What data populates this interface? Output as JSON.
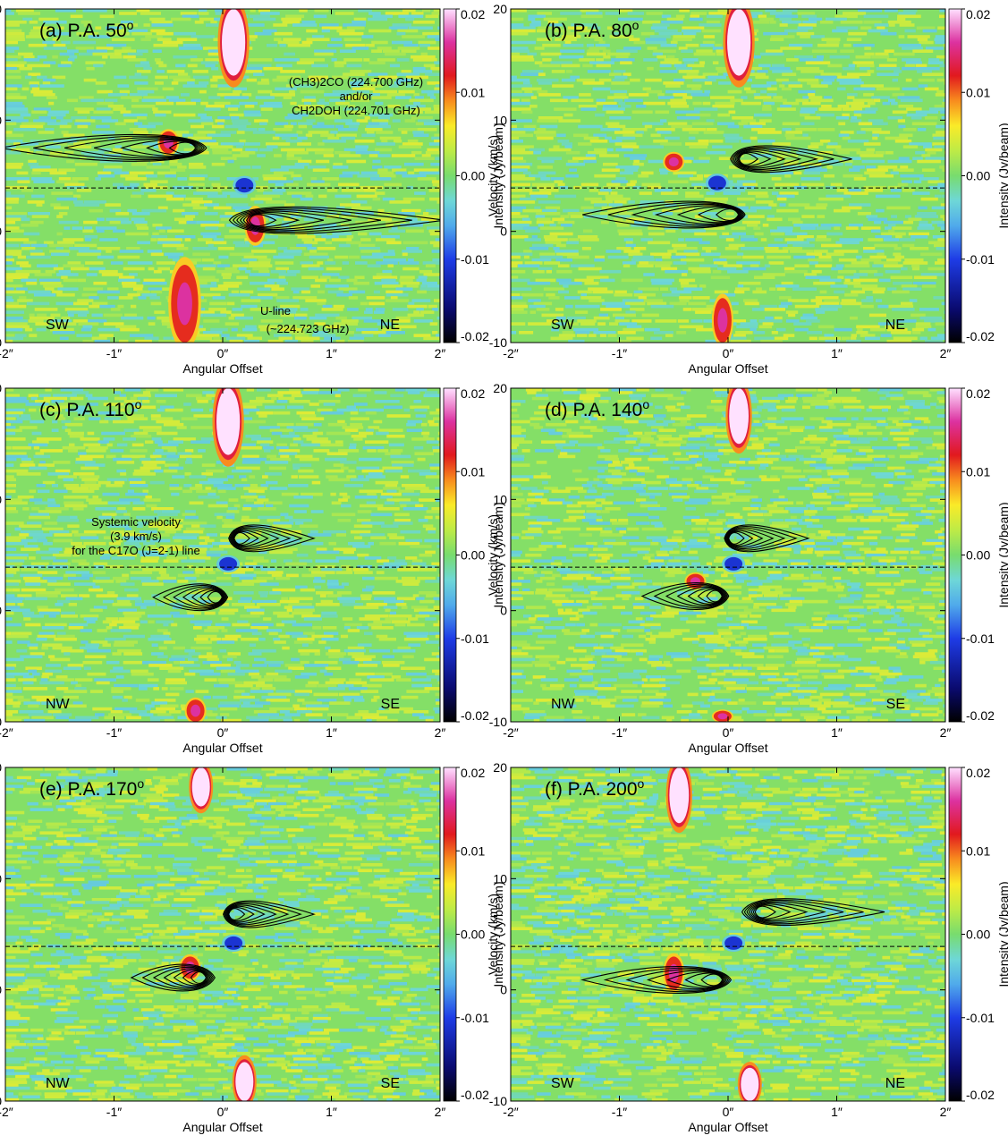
{
  "figure": {
    "x_tick_labels": [
      "-2″",
      "-1″",
      "0″",
      "1″",
      "2″"
    ],
    "y_tick_labels": [
      "-10",
      "0",
      "10",
      "20"
    ],
    "cbar_tick_labels": [
      "-0.02",
      "-0.01",
      "0.00",
      "0.01",
      "0.02"
    ],
    "xlabel": "Angular Offset",
    "ylabel": "Velocity (km/s)",
    "cbar_label": "Intensity (Jy/beam)",
    "annotations": {
      "molecule_line1": "(CH3)2CO (224.700 GHz)",
      "molecule_line2": "and/or",
      "molecule_line3": "CH2DOH (224.701 GHz)",
      "uline_line1": "U-line",
      "uline_line2": "(~224.723 GHz)",
      "systemic_line1": "Systemic velocity",
      "systemic_line2": "(3.9 km/s)",
      "systemic_line3": "for the C17O (J=2-1) line"
    }
  },
  "chart_data": [
    {
      "type": "heatmap",
      "title": "(a) P.A. 50o",
      "xlabel": "Angular Offset",
      "ylabel": "Velocity (km/s)",
      "xlim": [
        -2,
        2
      ],
      "ylim": [
        -10,
        20
      ],
      "colorbar": {
        "label": "Intensity (Jy/beam)",
        "range": [
          -0.02,
          0.02
        ]
      },
      "direction_left": "SW",
      "direction_right": "NE",
      "systemic_velocity": 3.9,
      "emission_features": [
        {
          "offset": 0.1,
          "velocity_range": [
            14,
            20
          ],
          "intensity": ">0.02"
        },
        {
          "offset": -0.35,
          "velocity_range": [
            -10,
            -3
          ],
          "intensity": 0.01
        },
        {
          "offset": 0.3,
          "velocity_range": [
            -1,
            2
          ],
          "intensity": 0.015
        },
        {
          "offset": -0.5,
          "velocity_range": [
            7,
            9
          ],
          "intensity": 0.01
        }
      ],
      "absorption_features": [
        {
          "offset": 0.2,
          "velocity_range": [
            3.5,
            4.8
          ],
          "intensity": -0.01
        }
      ],
      "contour_lobes": [
        {
          "center": [
            -0.3,
            7.5
          ],
          "extent_offset": [
            -2,
            0.2
          ]
        },
        {
          "center": [
            0.3,
            1.0
          ],
          "extent_offset": [
            -0.6,
            2
          ]
        }
      ]
    },
    {
      "type": "heatmap",
      "title": "(b) P.A. 80o",
      "xlabel": "Angular Offset",
      "ylabel": "Velocity (km/s)",
      "xlim": [
        -2,
        2
      ],
      "ylim": [
        -10,
        20
      ],
      "colorbar": {
        "label": "Intensity (Jy/beam)",
        "range": [
          -0.02,
          0.02
        ]
      },
      "direction_left": "SW",
      "direction_right": "NE",
      "systemic_velocity": 3.9,
      "emission_features": [
        {
          "offset": 0.1,
          "velocity_range": [
            14,
            20
          ],
          "intensity": ">0.02"
        },
        {
          "offset": -0.05,
          "velocity_range": [
            -10,
            -6
          ],
          "intensity": 0.01
        },
        {
          "offset": -0.5,
          "velocity_range": [
            5.5,
            7
          ],
          "intensity": 0.01
        }
      ],
      "absorption_features": [
        {
          "offset": -0.1,
          "velocity_range": [
            3.7,
            5
          ],
          "intensity": -0.01
        }
      ],
      "contour_lobes": [
        {
          "center": [
            0.15,
            6.5
          ],
          "extent_offset": [
            -0.25,
            1.1
          ]
        },
        {
          "center": [
            0.05,
            1.5
          ],
          "extent_offset": [
            -1.3,
            0.35
          ]
        }
      ]
    },
    {
      "type": "heatmap",
      "title": "(c) P.A. 110o",
      "xlabel": "Angular Offset",
      "ylabel": "Velocity (km/s)",
      "xlim": [
        -2,
        2
      ],
      "ylim": [
        -10,
        20
      ],
      "colorbar": {
        "label": "Intensity (Jy/beam)",
        "range": [
          -0.02,
          0.02
        ]
      },
      "direction_left": "NW",
      "direction_right": "SE",
      "systemic_velocity": 3.9,
      "emission_features": [
        {
          "offset": 0.05,
          "velocity_range": [
            14,
            20
          ],
          "intensity": ">0.02"
        },
        {
          "offset": -0.25,
          "velocity_range": [
            -10,
            -8
          ],
          "intensity": 0.01
        }
      ],
      "absorption_features": [
        {
          "offset": 0.05,
          "velocity_range": [
            3.6,
            4.8
          ],
          "intensity": -0.01
        }
      ],
      "contour_lobes": [
        {
          "center": [
            0.15,
            6.5
          ],
          "extent_offset": [
            -0.1,
            0.8
          ]
        },
        {
          "center": [
            -0.05,
            1.2
          ],
          "extent_offset": [
            -0.6,
            0.2
          ]
        }
      ]
    },
    {
      "type": "heatmap",
      "title": "(d) P.A. 140o",
      "xlabel": "Angular Offset",
      "ylabel": "Velocity (km/s)",
      "xlim": [
        -2,
        2
      ],
      "ylim": [
        -10,
        20
      ],
      "colorbar": {
        "label": "Intensity (Jy/beam)",
        "range": [
          -0.02,
          0.02
        ]
      },
      "direction_left": "NW",
      "direction_right": "SE",
      "systemic_velocity": 3.9,
      "emission_features": [
        {
          "offset": 0.1,
          "velocity_range": [
            15,
            20
          ],
          "intensity": ">0.02"
        },
        {
          "offset": -0.05,
          "velocity_range": [
            -10,
            -9
          ],
          "intensity": 0.01
        },
        {
          "offset": -0.3,
          "velocity_range": [
            2,
            3.3
          ],
          "intensity": 0.01
        }
      ],
      "absorption_features": [
        {
          "offset": 0.05,
          "velocity_range": [
            3.6,
            4.8
          ],
          "intensity": -0.01
        }
      ],
      "contour_lobes": [
        {
          "center": [
            0.05,
            6.5
          ],
          "extent_offset": [
            -0.15,
            0.7
          ]
        },
        {
          "center": [
            -0.1,
            1.3
          ],
          "extent_offset": [
            -0.75,
            0.2
          ]
        }
      ]
    },
    {
      "type": "heatmap",
      "title": "(e) P.A. 170o",
      "xlabel": "Angular Offset",
      "ylabel": "Velocity (km/s)",
      "xlim": [
        -2,
        2
      ],
      "ylim": [
        -10,
        20
      ],
      "colorbar": {
        "label": "Intensity (Jy/beam)",
        "range": [
          -0.02,
          0.02
        ]
      },
      "direction_left": "NW",
      "direction_right": "SE",
      "systemic_velocity": 3.9,
      "emission_features": [
        {
          "offset": -0.2,
          "velocity_range": [
            16.5,
            20
          ],
          "intensity": ">0.02"
        },
        {
          "offset": 0.2,
          "velocity_range": [
            -10,
            -6.5
          ],
          "intensity": ">0.02"
        },
        {
          "offset": -0.3,
          "velocity_range": [
            1,
            3
          ],
          "intensity": 0.01
        }
      ],
      "absorption_features": [
        {
          "offset": 0.1,
          "velocity_range": [
            3.6,
            4.8
          ],
          "intensity": -0.01
        }
      ],
      "contour_lobes": [
        {
          "center": [
            0.1,
            6.8
          ],
          "extent_offset": [
            -0.15,
            0.8
          ]
        },
        {
          "center": [
            -0.2,
            1.1
          ],
          "extent_offset": [
            -0.8,
            0.2
          ]
        }
      ]
    },
    {
      "type": "heatmap",
      "title": "(f) P.A. 200o",
      "xlabel": "Angular Offset",
      "ylabel": "Velocity (km/s)",
      "xlim": [
        -2,
        2
      ],
      "ylim": [
        -10,
        20
      ],
      "colorbar": {
        "label": "Intensity (Jy/beam)",
        "range": [
          -0.02,
          0.02
        ]
      },
      "direction_left": "SW",
      "direction_right": "NE",
      "systemic_velocity": 3.9,
      "emission_features": [
        {
          "offset": -0.45,
          "velocity_range": [
            15,
            20
          ],
          "intensity": ">0.02"
        },
        {
          "offset": 0.2,
          "velocity_range": [
            -10,
            -7
          ],
          "intensity": ">0.02"
        },
        {
          "offset": -0.5,
          "velocity_range": [
            0,
            3
          ],
          "intensity": 0.01
        }
      ],
      "absorption_features": [
        {
          "offset": 0.05,
          "velocity_range": [
            3.6,
            4.8
          ],
          "intensity": -0.01
        }
      ],
      "contour_lobes": [
        {
          "center": [
            0.3,
            7.0
          ],
          "extent_offset": [
            -0.3,
            1.4
          ]
        },
        {
          "center": [
            -0.1,
            0.9
          ],
          "extent_offset": [
            -1.3,
            0.3
          ]
        }
      ]
    }
  ]
}
